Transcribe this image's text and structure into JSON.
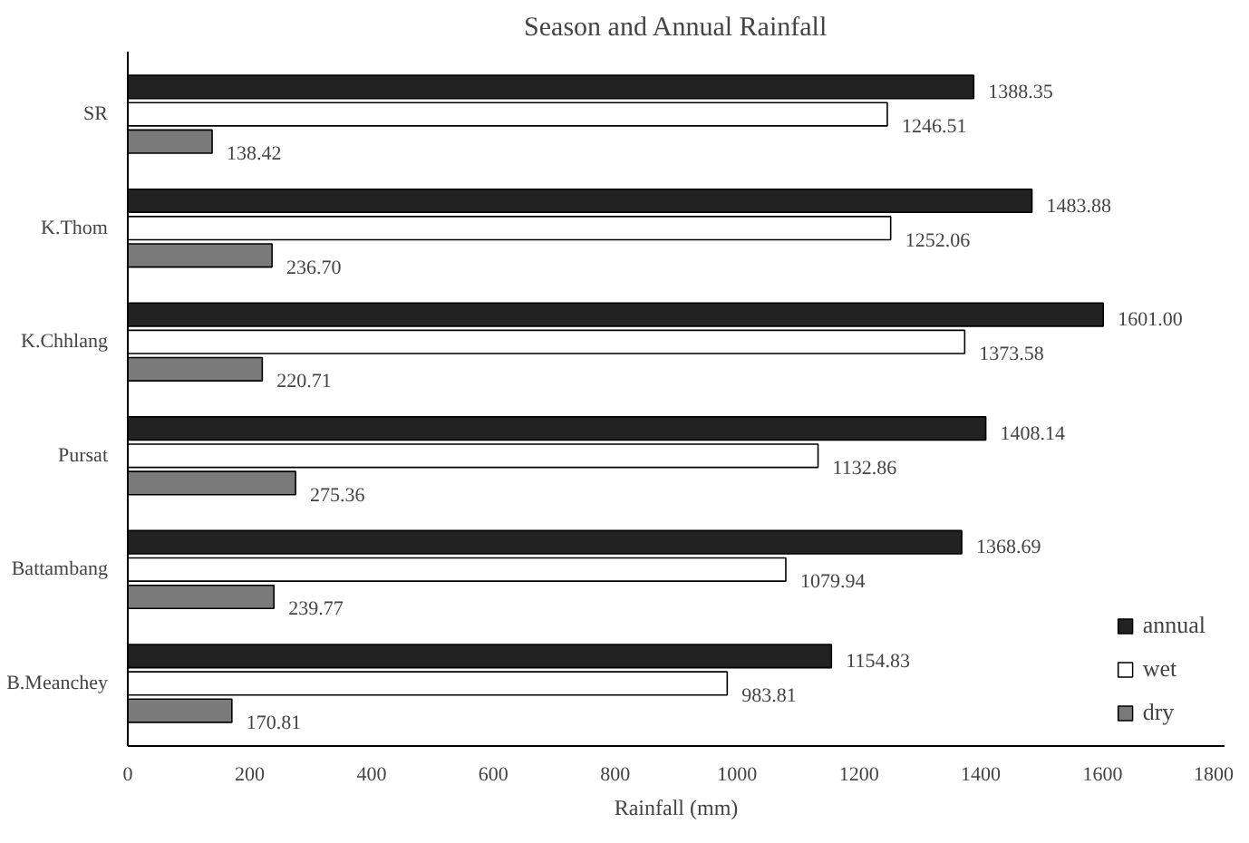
{
  "chart_data": {
    "type": "bar",
    "orientation": "horizontal",
    "title": "Season and Annual Rainfall",
    "xlabel": "Rainfall (mm)",
    "categories": [
      "SR",
      "K.Thom",
      "K.Chhlang",
      "Pursat",
      "Battambang",
      "B.Meanchey"
    ],
    "series": [
      {
        "name": "annual",
        "color": "#222222",
        "values": [
          1388.35,
          1483.88,
          1601.0,
          1408.14,
          1368.69,
          1154.83
        ],
        "value_labels": [
          "1388.35",
          "1483.88",
          "1601.00",
          "1408.14",
          "1368.69",
          "1154.83"
        ]
      },
      {
        "name": "wet",
        "color": "#ffffff",
        "values": [
          1246.51,
          1252.06,
          1373.58,
          1132.86,
          1079.94,
          983.81
        ],
        "value_labels": [
          "1246.51",
          "1252.06",
          "1373.58",
          "1132.86",
          "1079.94",
          "983.81"
        ]
      },
      {
        "name": "dry",
        "color": "#7a7a7a",
        "values": [
          138.42,
          236.7,
          220.71,
          275.36,
          239.77,
          170.81
        ],
        "value_labels": [
          "138.42",
          "236.70",
          "220.71",
          "275.36",
          "239.77",
          "170.81"
        ]
      }
    ],
    "xlim": [
      0,
      1800
    ],
    "xticks": [
      0,
      200,
      400,
      600,
      800,
      1000,
      1200,
      1400,
      1600,
      1800
    ],
    "legend": "bottom right"
  }
}
